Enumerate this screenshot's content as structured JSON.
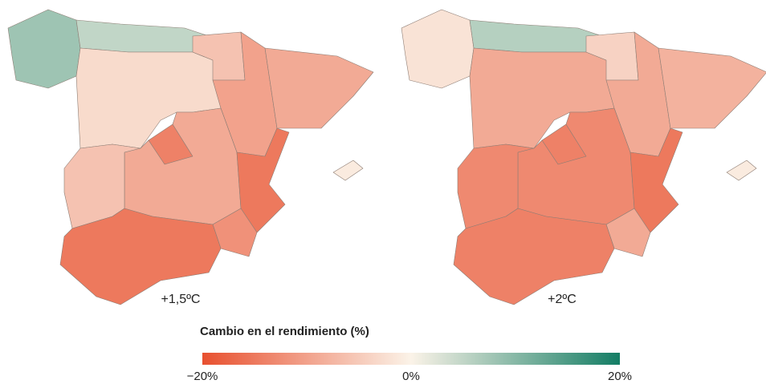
{
  "maps": [
    {
      "label": "+1,5ºC",
      "regions": [
        8,
        5,
        -3,
        -6,
        -10,
        -9,
        -14,
        -9,
        -6,
        -15,
        -12,
        -15,
        -1
      ]
    },
    {
      "label": "+2ºC",
      "regions": [
        -2,
        6,
        -9,
        -4,
        -9,
        -8,
        -14,
        -13,
        -13,
        -15,
        -9,
        -14,
        -1
      ]
    }
  ],
  "legend": {
    "title": "Cambio en el rendimiento (%)",
    "min": -20,
    "max": 20,
    "colors": [
      "#e8502f",
      "#fbf3e8",
      "#137d64"
    ],
    "ticks": [
      {
        "value": -20,
        "label": "−20%"
      },
      {
        "value": 0,
        "label": "0%"
      },
      {
        "value": 20,
        "label": "20%"
      }
    ]
  }
}
